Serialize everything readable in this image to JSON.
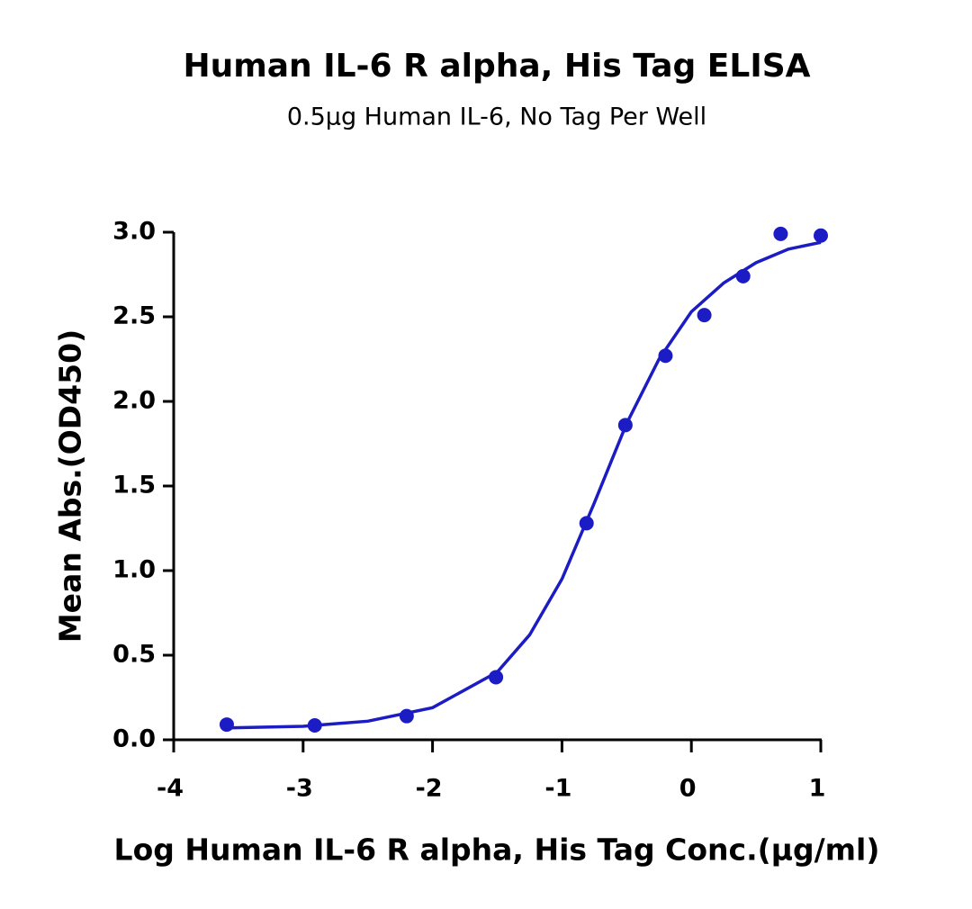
{
  "chart_data": {
    "type": "scatter",
    "title": "Human IL-6 R alpha, His Tag ELISA",
    "subtitle": "0.5µg Human IL-6, No Tag Per Well",
    "x_label": "Log Human IL-6 R alpha, His Tag Conc.(µg/ml)",
    "y_label": "Mean Abs.(OD450)",
    "xlim": [
      -4,
      1
    ],
    "ylim": [
      0,
      3
    ],
    "xticks": [
      -4,
      -3,
      -2,
      -1,
      0,
      1
    ],
    "yticks": [
      {
        "value": 0,
        "label": "0.0"
      },
      0.5,
      {
        "value": 1,
        "label": "1.0"
      },
      1.5,
      {
        "value": 2,
        "label": "2.0"
      },
      2.5,
      {
        "value": 3,
        "label": "3.0"
      }
    ],
    "series": [
      {
        "type": "scatter",
        "color": "#1c1cc4",
        "x": [
          -3.59,
          -2.91,
          -2.2,
          -1.51,
          -0.81,
          -0.51,
          -0.2,
          0.1,
          0.4,
          0.69,
          1.0
        ],
        "values": [
          0.09,
          0.085,
          0.14,
          0.37,
          1.28,
          1.86,
          2.27,
          2.51,
          2.74,
          2.99,
          2.98
        ]
      },
      {
        "type": "line",
        "color": "#1c1cc4",
        "x": [
          -3.6,
          -3,
          -2.5,
          -2,
          -1.5,
          -1.25,
          -1,
          -0.75,
          -0.5,
          -0.25,
          0,
          0.25,
          0.5,
          0.75,
          1
        ],
        "values": [
          0.07,
          0.08,
          0.11,
          0.19,
          0.4,
          0.62,
          0.95,
          1.4,
          1.87,
          2.25,
          2.53,
          2.7,
          2.82,
          2.9,
          2.94
        ]
      }
    ]
  }
}
